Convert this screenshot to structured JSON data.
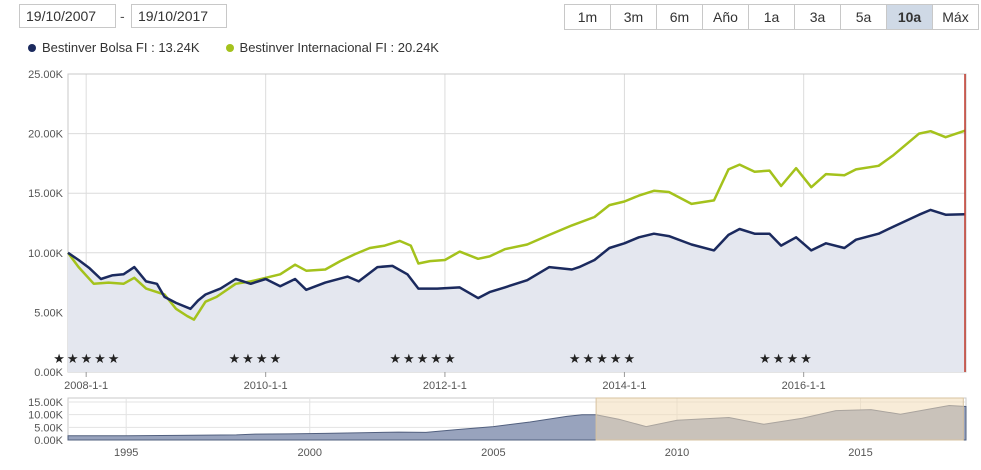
{
  "date_range": {
    "from": "19/10/2007",
    "separator": "-",
    "to": "19/10/2017"
  },
  "range_buttons": [
    {
      "label": "1m",
      "active": false
    },
    {
      "label": "3m",
      "active": false
    },
    {
      "label": "6m",
      "active": false
    },
    {
      "label": "Año",
      "active": false
    },
    {
      "label": "1a",
      "active": false
    },
    {
      "label": "3a",
      "active": false
    },
    {
      "label": "5a",
      "active": false
    },
    {
      "label": "10a",
      "active": true
    },
    {
      "label": "Máx",
      "active": false
    }
  ],
  "legend": [
    {
      "label": "Bestinver Bolsa FI : 13.24K",
      "color": "#1b2a5e"
    },
    {
      "label": "Bestinver Internacional FI : 20.24K",
      "color": "#a4c21c"
    }
  ],
  "star_groups": [
    {
      "stars": "★★★★★",
      "x": "2007-11-01"
    },
    {
      "stars": "★★★★",
      "x": "2009-10-15"
    },
    {
      "stars": "★★★★★",
      "x": "2011-08-01"
    },
    {
      "stars": "★★★★★",
      "x": "2013-08-01"
    },
    {
      "stars": "★★★★",
      "x": "2015-09-15"
    }
  ],
  "chart_data": {
    "type": "line",
    "title": "",
    "xlabel": "",
    "ylabel": "",
    "x_range": [
      "2007-10-19",
      "2017-10-19"
    ],
    "ylim": [
      0,
      25000
    ],
    "y_ticks": [
      "0.00K",
      "5.00K",
      "10.00K",
      "15.00K",
      "20.00K",
      "25.00K"
    ],
    "x_ticks": [
      {
        "label": "2008-1-1",
        "x": "2008-01-01"
      },
      {
        "label": "2010-1-1",
        "x": "2010-01-01"
      },
      {
        "label": "2012-1-1",
        "x": "2012-01-01"
      },
      {
        "label": "2014-1-1",
        "x": "2014-01-01"
      },
      {
        "label": "2016-1-1",
        "x": "2016-01-01"
      }
    ],
    "grid": true,
    "colors": {
      "bolsa": "#1b2a5e",
      "internacional": "#a4c21c",
      "area": "#e4e7ef",
      "end_marker": "#c0392b"
    },
    "series": [
      {
        "name": "Bestinver Bolsa FI",
        "points": [
          [
            "2007-10-19",
            10000
          ],
          [
            "2007-12-01",
            9400
          ],
          [
            "2008-01-15",
            8700
          ],
          [
            "2008-03-01",
            7800
          ],
          [
            "2008-04-15",
            8100
          ],
          [
            "2008-06-01",
            8200
          ],
          [
            "2008-07-15",
            8800
          ],
          [
            "2008-09-01",
            7600
          ],
          [
            "2008-10-15",
            7400
          ],
          [
            "2008-11-15",
            6300
          ],
          [
            "2009-01-01",
            5800
          ],
          [
            "2009-03-01",
            5300
          ],
          [
            "2009-04-01",
            6000
          ],
          [
            "2009-05-01",
            6500
          ],
          [
            "2009-07-01",
            7000
          ],
          [
            "2009-09-01",
            7800
          ],
          [
            "2009-11-01",
            7400
          ],
          [
            "2010-01-01",
            7800
          ],
          [
            "2010-03-01",
            7200
          ],
          [
            "2010-05-01",
            7800
          ],
          [
            "2010-06-15",
            6900
          ],
          [
            "2010-09-01",
            7500
          ],
          [
            "2010-12-01",
            8000
          ],
          [
            "2011-01-15",
            7600
          ],
          [
            "2011-04-01",
            8800
          ],
          [
            "2011-06-01",
            8900
          ],
          [
            "2011-08-01",
            8200
          ],
          [
            "2011-09-15",
            7000
          ],
          [
            "2011-12-01",
            7000
          ],
          [
            "2012-03-01",
            7100
          ],
          [
            "2012-05-15",
            6200
          ],
          [
            "2012-07-01",
            6700
          ],
          [
            "2012-09-01",
            7100
          ],
          [
            "2012-12-01",
            7700
          ],
          [
            "2013-03-01",
            8800
          ],
          [
            "2013-06-01",
            8600
          ],
          [
            "2013-07-01",
            8800
          ],
          [
            "2013-09-01",
            9400
          ],
          [
            "2013-11-01",
            10400
          ],
          [
            "2014-01-01",
            10800
          ],
          [
            "2014-03-01",
            11300
          ],
          [
            "2014-05-01",
            11600
          ],
          [
            "2014-07-01",
            11400
          ],
          [
            "2014-10-01",
            10700
          ],
          [
            "2015-01-01",
            10200
          ],
          [
            "2015-03-01",
            11500
          ],
          [
            "2015-04-15",
            12000
          ],
          [
            "2015-06-15",
            11600
          ],
          [
            "2015-08-15",
            11600
          ],
          [
            "2015-10-01",
            10600
          ],
          [
            "2015-12-01",
            11300
          ],
          [
            "2016-02-01",
            10200
          ],
          [
            "2016-04-01",
            10800
          ],
          [
            "2016-06-15",
            10400
          ],
          [
            "2016-08-01",
            11100
          ],
          [
            "2016-11-01",
            11600
          ],
          [
            "2017-01-01",
            12200
          ],
          [
            "2017-04-15",
            13200
          ],
          [
            "2017-06-01",
            13600
          ],
          [
            "2017-08-01",
            13200
          ],
          [
            "2017-10-19",
            13240
          ]
        ]
      },
      {
        "name": "Bestinver Internacional FI",
        "points": [
          [
            "2007-10-19",
            10000
          ],
          [
            "2007-12-01",
            8800
          ],
          [
            "2008-02-01",
            7400
          ],
          [
            "2008-04-01",
            7500
          ],
          [
            "2008-06-01",
            7400
          ],
          [
            "2008-07-15",
            7900
          ],
          [
            "2008-09-01",
            7000
          ],
          [
            "2008-10-15",
            6700
          ],
          [
            "2008-11-15",
            6500
          ],
          [
            "2009-01-01",
            5300
          ],
          [
            "2009-02-15",
            4700
          ],
          [
            "2009-03-15",
            4400
          ],
          [
            "2009-05-01",
            5900
          ],
          [
            "2009-06-15",
            6300
          ],
          [
            "2009-09-01",
            7400
          ],
          [
            "2009-11-01",
            7600
          ],
          [
            "2010-01-01",
            7900
          ],
          [
            "2010-03-01",
            8200
          ],
          [
            "2010-05-01",
            9000
          ],
          [
            "2010-06-15",
            8500
          ],
          [
            "2010-09-01",
            8600
          ],
          [
            "2010-11-01",
            9300
          ],
          [
            "2011-01-01",
            9900
          ],
          [
            "2011-03-01",
            10400
          ],
          [
            "2011-05-01",
            10600
          ],
          [
            "2011-07-01",
            11000
          ],
          [
            "2011-08-15",
            10600
          ],
          [
            "2011-09-15",
            9100
          ],
          [
            "2011-11-01",
            9300
          ],
          [
            "2012-01-01",
            9400
          ],
          [
            "2012-03-01",
            10100
          ],
          [
            "2012-05-15",
            9500
          ],
          [
            "2012-07-01",
            9700
          ],
          [
            "2012-09-01",
            10300
          ],
          [
            "2012-12-01",
            10700
          ],
          [
            "2013-03-01",
            11500
          ],
          [
            "2013-06-01",
            12300
          ],
          [
            "2013-09-01",
            13000
          ],
          [
            "2013-11-01",
            14000
          ],
          [
            "2014-01-01",
            14300
          ],
          [
            "2014-03-01",
            14800
          ],
          [
            "2014-05-01",
            15200
          ],
          [
            "2014-07-01",
            15100
          ],
          [
            "2014-10-01",
            14100
          ],
          [
            "2015-01-01",
            14400
          ],
          [
            "2015-03-01",
            17000
          ],
          [
            "2015-04-15",
            17400
          ],
          [
            "2015-06-15",
            16800
          ],
          [
            "2015-08-15",
            16900
          ],
          [
            "2015-10-01",
            15600
          ],
          [
            "2015-12-01",
            17100
          ],
          [
            "2016-02-01",
            15500
          ],
          [
            "2016-04-01",
            16600
          ],
          [
            "2016-06-15",
            16500
          ],
          [
            "2016-08-01",
            17000
          ],
          [
            "2016-11-01",
            17300
          ],
          [
            "2017-01-01",
            18200
          ],
          [
            "2017-04-15",
            20000
          ],
          [
            "2017-06-01",
            20200
          ],
          [
            "2017-08-01",
            19700
          ],
          [
            "2017-10-19",
            20240
          ]
        ]
      }
    ],
    "navigator": {
      "y_ticks": [
        "0.00K",
        "5.00K",
        "10.00K",
        "15.00K"
      ],
      "ylim": [
        0,
        15000
      ],
      "x_range": [
        "1993-06-01",
        "2017-11-15"
      ],
      "x_ticks": [
        {
          "label": "1995",
          "x": "1995-01-01"
        },
        {
          "label": "2000",
          "x": "2000-01-01"
        },
        {
          "label": "2005",
          "x": "2005-01-01"
        },
        {
          "label": "2010",
          "x": "2010-01-01"
        },
        {
          "label": "2015",
          "x": "2015-01-01"
        }
      ],
      "selection": [
        "2007-10-19",
        "2017-10-19"
      ],
      "points": [
        [
          "1993-06-01",
          1700
        ],
        [
          "1995-01-01",
          1700
        ],
        [
          "1996-06-01",
          1800
        ],
        [
          "1998-01-01",
          2000
        ],
        [
          "1998-06-01",
          2300
        ],
        [
          "1999-06-01",
          2400
        ],
        [
          "2000-06-01",
          2600
        ],
        [
          "2001-06-01",
          2900
        ],
        [
          "2002-06-01",
          3100
        ],
        [
          "2003-03-01",
          3000
        ],
        [
          "2004-01-01",
          4100
        ],
        [
          "2005-01-01",
          5300
        ],
        [
          "2006-01-01",
          7100
        ],
        [
          "2007-01-01",
          9300
        ],
        [
          "2007-06-01",
          10000
        ],
        [
          "2007-10-19",
          10000
        ],
        [
          "2008-06-01",
          8200
        ],
        [
          "2009-03-01",
          5300
        ],
        [
          "2010-01-01",
          7800
        ],
        [
          "2011-06-01",
          8900
        ],
        [
          "2012-05-15",
          6200
        ],
        [
          "2013-06-01",
          8600
        ],
        [
          "2014-05-01",
          11600
        ],
        [
          "2015-04-15",
          12000
        ],
        [
          "2016-02-01",
          10200
        ],
        [
          "2017-06-01",
          13600
        ],
        [
          "2017-11-15",
          13240
        ]
      ]
    }
  }
}
